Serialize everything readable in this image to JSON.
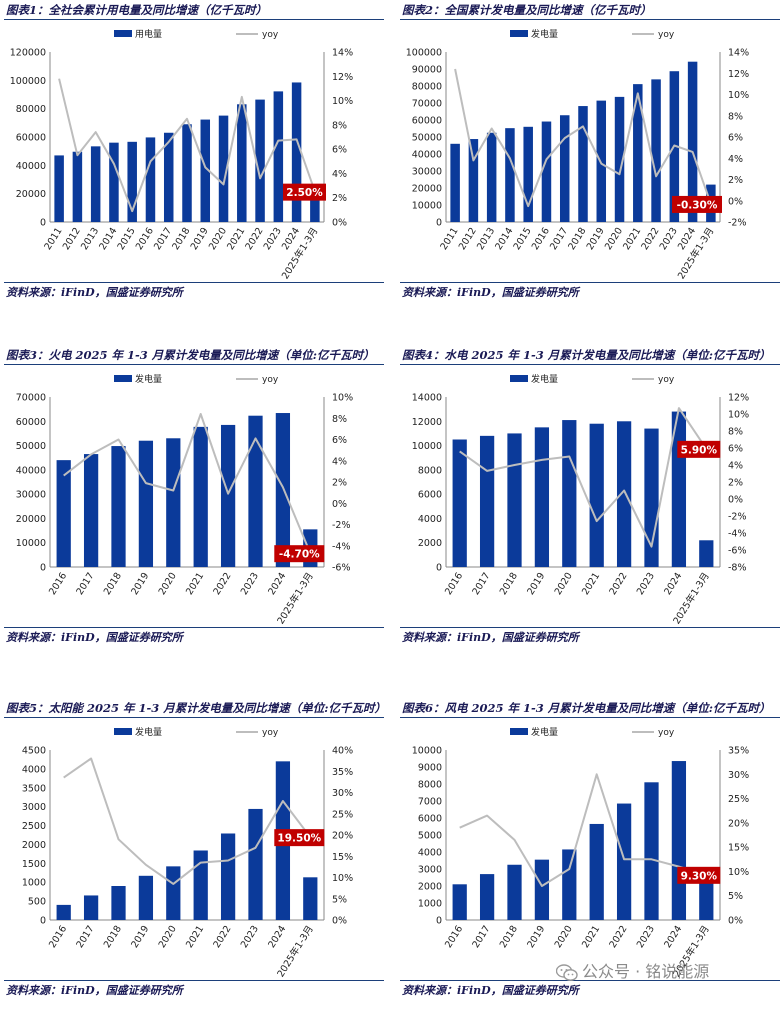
{
  "theme": {
    "bar_color": "#0b3a9a",
    "line_color": "#bdbdbd",
    "callout_color": "#c00000",
    "title_color": "#1a1a55"
  },
  "panels": [
    {
      "title": "图表1：全社会累计用电量及同比增速（亿千瓦时）",
      "source": "资料来源：iFinD，国盛证券研究所"
    },
    {
      "title": "图表2：全国累计发电量及同比增速（亿千瓦时）",
      "source": "资料来源：iFinD，国盛证券研究所"
    },
    {
      "title": "图表3：火电 2025 年 1-3 月累计发电量及同比增速（单位:亿千瓦时）",
      "source": "资料来源：iFinD，国盛证券研究所"
    },
    {
      "title": "图表4：水电 2025 年 1-3 月累计发电量及同比增速（单位:亿千瓦时）",
      "source": "资料来源：iFinD，国盛证券研究所"
    },
    {
      "title": "图表5：太阳能 2025 年 1-3 月累计发电量及同比增速（单位:亿千瓦时）",
      "source": "资料来源：iFinD，国盛证券研究所"
    },
    {
      "title": "图表6：风电 2025 年 1-3 月累计发电量及同比增速（单位:亿千瓦时）",
      "source": "资料来源：iFinD，国盛证券研究所"
    }
  ],
  "chart_data": [
    {
      "type": "bar",
      "categories": [
        "2011",
        "2012",
        "2013",
        "2014",
        "2015",
        "2016",
        "2017",
        "2018",
        "2019",
        "2020",
        "2021",
        "2022",
        "2023",
        "2024",
        "2025年1-3月"
      ],
      "series": [
        {
          "name": "用电量",
          "type": "bar",
          "axis": "left",
          "values": [
            47000,
            49600,
            53400,
            56000,
            56600,
            59700,
            63000,
            69000,
            72300,
            75100,
            83100,
            86400,
            92200,
            98500,
            24800
          ]
        },
        {
          "name": "yoy",
          "type": "line",
          "axis": "right",
          "values": [
            11.8,
            5.5,
            7.4,
            4.8,
            0.9,
            5.0,
            6.6,
            8.5,
            4.5,
            3.1,
            10.3,
            3.6,
            6.7,
            6.8,
            2.5
          ]
        }
      ],
      "ylim_left": [
        0,
        120000
      ],
      "yticks_left": [
        "0",
        "20000",
        "40000",
        "60000",
        "80000",
        "100000",
        "120000"
      ],
      "ylim_right": [
        0,
        14
      ],
      "yticks_right": [
        "0%",
        "2%",
        "4%",
        "6%",
        "8%",
        "10%",
        "12%",
        "14%"
      ],
      "callout": "2.50%",
      "legend": "top"
    },
    {
      "type": "bar",
      "categories": [
        "2011",
        "2012",
        "2013",
        "2014",
        "2015",
        "2016",
        "2017",
        "2018",
        "2019",
        "2020",
        "2021",
        "2022",
        "2023",
        "2024",
        "2025年1-3月"
      ],
      "series": [
        {
          "name": "发电量",
          "type": "bar",
          "axis": "left",
          "values": [
            46000,
            48800,
            52500,
            55200,
            56000,
            59100,
            62800,
            68200,
            71400,
            73600,
            81100,
            83900,
            88700,
            94300,
            22000
          ]
        },
        {
          "name": "yoy",
          "type": "line",
          "axis": "right",
          "values": [
            12.4,
            3.8,
            6.8,
            4.0,
            -0.5,
            3.9,
            5.9,
            7.0,
            3.5,
            2.5,
            10.1,
            2.3,
            5.2,
            4.6,
            -0.3
          ]
        }
      ],
      "ylim_left": [
        0,
        100000
      ],
      "yticks_left": [
        "0",
        "10000",
        "20000",
        "30000",
        "40000",
        "50000",
        "60000",
        "70000",
        "80000",
        "90000",
        "100000"
      ],
      "ylim_right": [
        -2,
        14
      ],
      "yticks_right": [
        "-2%",
        "0%",
        "2%",
        "4%",
        "6%",
        "8%",
        "10%",
        "12%",
        "14%"
      ],
      "callout": "-0.30%",
      "legend": "top"
    },
    {
      "type": "bar",
      "categories": [
        "2016",
        "2017",
        "2018",
        "2019",
        "2020",
        "2021",
        "2022",
        "2023",
        "2024",
        "2025年1-3月"
      ],
      "series": [
        {
          "name": "发电量",
          "type": "bar",
          "axis": "left",
          "values": [
            44000,
            46500,
            49800,
            52000,
            53000,
            57700,
            58500,
            62300,
            63400,
            15500
          ]
        },
        {
          "name": "yoy",
          "type": "line",
          "axis": "right",
          "values": [
            2.6,
            4.6,
            6.0,
            1.9,
            1.2,
            8.4,
            0.9,
            6.1,
            1.5,
            -4.7
          ]
        }
      ],
      "ylim_left": [
        0,
        70000
      ],
      "yticks_left": [
        "0",
        "10000",
        "20000",
        "30000",
        "40000",
        "50000",
        "60000",
        "70000"
      ],
      "ylim_right": [
        -6,
        10
      ],
      "yticks_right": [
        "-6%",
        "-4%",
        "-2%",
        "0%",
        "2%",
        "4%",
        "6%",
        "8%",
        "10%"
      ],
      "callout": "-4.70%",
      "legend": "top"
    },
    {
      "type": "bar",
      "categories": [
        "2016",
        "2017",
        "2018",
        "2019",
        "2020",
        "2021",
        "2022",
        "2023",
        "2024",
        "2025年1-3月"
      ],
      "series": [
        {
          "name": "发电量",
          "type": "bar",
          "axis": "left",
          "values": [
            10500,
            10800,
            11000,
            11500,
            12100,
            11800,
            12000,
            11400,
            12800,
            2200
          ]
        },
        {
          "name": "yoy",
          "type": "line",
          "axis": "right",
          "values": [
            5.6,
            3.3,
            4.0,
            4.6,
            5.0,
            -2.6,
            1.0,
            -5.6,
            10.7,
            5.9
          ]
        }
      ],
      "ylim_left": [
        0,
        14000
      ],
      "yticks_left": [
        "0",
        "2000",
        "4000",
        "6000",
        "8000",
        "10000",
        "12000",
        "14000"
      ],
      "ylim_right": [
        -8,
        12
      ],
      "yticks_right": [
        "-8%",
        "-6%",
        "-4%",
        "-2%",
        "0%",
        "2%",
        "4%",
        "6%",
        "8%",
        "10%",
        "12%"
      ],
      "callout": "5.90%",
      "legend": "top"
    },
    {
      "type": "bar",
      "categories": [
        "2016",
        "2017",
        "2018",
        "2019",
        "2020",
        "2021",
        "2022",
        "2023",
        "2024",
        "2025年1-3月"
      ],
      "series": [
        {
          "name": "发电量",
          "type": "bar",
          "axis": "left",
          "values": [
            400,
            650,
            900,
            1170,
            1420,
            1840,
            2290,
            2940,
            4200,
            1130
          ]
        },
        {
          "name": "yoy",
          "type": "line",
          "axis": "right",
          "values": [
            33.5,
            38.0,
            19.0,
            13.0,
            8.5,
            13.5,
            14.0,
            17.0,
            28.0,
            19.5
          ]
        }
      ],
      "ylim_left": [
        0,
        4500
      ],
      "yticks_left": [
        "0",
        "500",
        "1000",
        "1500",
        "2000",
        "2500",
        "3000",
        "3500",
        "4000",
        "4500"
      ],
      "ylim_right": [
        0,
        40
      ],
      "yticks_right": [
        "0%",
        "5%",
        "10%",
        "15%",
        "20%",
        "25%",
        "30%",
        "35%",
        "40%"
      ],
      "callout": "19.50%",
      "legend": "top"
    },
    {
      "type": "bar",
      "categories": [
        "2016",
        "2017",
        "2018",
        "2019",
        "2020",
        "2021",
        "2022",
        "2023",
        "2024",
        "2025年1-3月"
      ],
      "series": [
        {
          "name": "发电量",
          "type": "bar",
          "axis": "left",
          "values": [
            2100,
            2700,
            3250,
            3550,
            4150,
            5650,
            6850,
            8100,
            9350,
            2800
          ]
        },
        {
          "name": "yoy",
          "type": "line",
          "axis": "right",
          "values": [
            19.0,
            21.5,
            16.5,
            7.0,
            10.5,
            30.0,
            12.5,
            12.5,
            11.0,
            9.3
          ]
        }
      ],
      "ylim_left": [
        0,
        10000
      ],
      "yticks_left": [
        "0",
        "1000",
        "2000",
        "3000",
        "4000",
        "5000",
        "6000",
        "7000",
        "8000",
        "9000",
        "10000"
      ],
      "ylim_right": [
        0,
        35
      ],
      "yticks_right": [
        "0%",
        "5%",
        "10%",
        "15%",
        "20%",
        "25%",
        "30%",
        "35%"
      ],
      "callout": "9.30%",
      "legend": "top"
    }
  ],
  "watermark": {
    "text": "公众号 · 铭说能源",
    "icon": "wechat-icon"
  }
}
